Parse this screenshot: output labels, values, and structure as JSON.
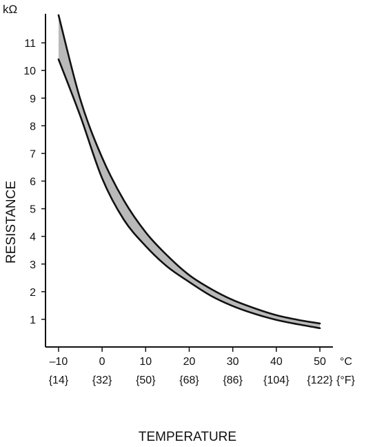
{
  "chart_data": {
    "type": "area",
    "title": "",
    "xlabel": "TEMPERATURE",
    "ylabel": "RESISTANCE",
    "y_unit": "kΩ",
    "x_unit_c": "°C",
    "x_unit_f": "{°F}",
    "xlim": [
      -13,
      53
    ],
    "ylim": [
      0,
      12
    ],
    "grid": false,
    "legend": "none",
    "band_color": "#b9b9b9",
    "line_color": "#111111",
    "x_ticks": [
      {
        "c": -10,
        "label_c": "–10",
        "label_f": "{14}"
      },
      {
        "c": 0,
        "label_c": "0",
        "label_f": "{32}"
      },
      {
        "c": 10,
        "label_c": "10",
        "label_f": "{50}"
      },
      {
        "c": 20,
        "label_c": "20",
        "label_f": "{68}"
      },
      {
        "c": 30,
        "label_c": "30",
        "label_f": "{86}"
      },
      {
        "c": 40,
        "label_c": "40",
        "label_f": "{104}"
      },
      {
        "c": 50,
        "label_c": "50",
        "label_f": "{122}"
      }
    ],
    "y_ticks": [
      {
        "value": 1,
        "label": "1"
      },
      {
        "value": 2,
        "label": "2"
      },
      {
        "value": 3,
        "label": "3"
      },
      {
        "value": 4,
        "label": "4"
      },
      {
        "value": 5,
        "label": "5"
      },
      {
        "value": 6,
        "label": "6"
      },
      {
        "value": 7,
        "label": "7"
      },
      {
        "value": 8,
        "label": "8"
      },
      {
        "value": 9,
        "label": "9"
      },
      {
        "value": 10,
        "label": "10"
      },
      {
        "value": 11,
        "label": "11"
      }
    ],
    "series": [
      {
        "x": [
          -10,
          -5,
          0,
          5,
          10,
          15,
          20,
          25,
          30,
          35,
          40,
          45,
          50
        ],
        "y": [
          12.0,
          8.95,
          6.85,
          5.3,
          4.15,
          3.3,
          2.6,
          2.1,
          1.7,
          1.4,
          1.15,
          0.98,
          0.85
        ]
      },
      {
        "x": [
          -10,
          -5,
          0,
          5,
          10,
          15,
          20,
          25,
          30,
          35,
          40,
          45,
          50
        ],
        "y": [
          10.4,
          8.35,
          6.1,
          4.6,
          3.65,
          2.9,
          2.35,
          1.85,
          1.48,
          1.2,
          0.98,
          0.82,
          0.68
        ]
      }
    ]
  }
}
